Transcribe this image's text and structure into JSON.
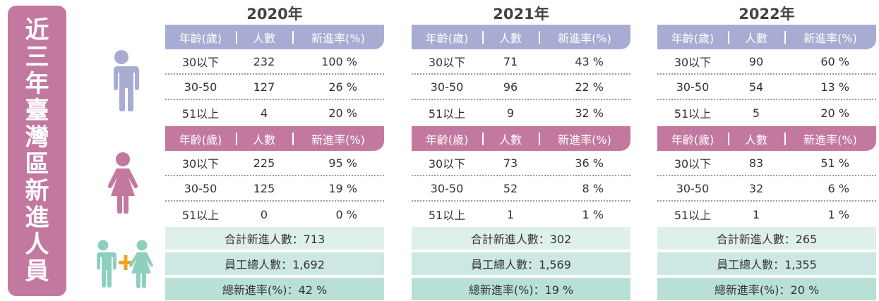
{
  "side_title": "近三年臺灣區新進人員",
  "icons": {
    "male": "male-person-icon",
    "female": "female-person-icon",
    "combined": "male-plus-female-icon"
  },
  "colors": {
    "male_header": "#a8acd3",
    "female_header": "#c3799f",
    "side_panel": "#c3799f",
    "summary_teal": "#b9e0d6",
    "plus_orange": "#f2a31b"
  },
  "headers": {
    "age": "年齡(歲)",
    "count": "人數",
    "rate": "新進率(%)"
  },
  "years": [
    {
      "year": "2020年",
      "male": [
        {
          "age": "30以下",
          "count": "232",
          "rate": "100 %"
        },
        {
          "age": "30-50",
          "count": "127",
          "rate": "26 %"
        },
        {
          "age": "51以上",
          "count": "4",
          "rate": "20 %"
        }
      ],
      "female": [
        {
          "age": "30以下",
          "count": "225",
          "rate": "95 %"
        },
        {
          "age": "30-50",
          "count": "125",
          "rate": "19 %"
        },
        {
          "age": "51以上",
          "count": "0",
          "rate": "0 %"
        }
      ],
      "total_new": "合計新進人數：713",
      "total_employees": "員工總人數：1,692",
      "total_rate": "總新進率(%)：42 %"
    },
    {
      "year": "2021年",
      "male": [
        {
          "age": "30以下",
          "count": "71",
          "rate": "43 %"
        },
        {
          "age": "30-50",
          "count": "96",
          "rate": "22 %"
        },
        {
          "age": "51以上",
          "count": "9",
          "rate": "32 %"
        }
      ],
      "female": [
        {
          "age": "30以下",
          "count": "73",
          "rate": "36 %"
        },
        {
          "age": "30-50",
          "count": "52",
          "rate": "8 %"
        },
        {
          "age": "51以上",
          "count": "1",
          "rate": "1 %"
        }
      ],
      "total_new": "合計新進人數：302",
      "total_employees": "員工總人數：1,569",
      "total_rate": "總新進率(%)：19 %"
    },
    {
      "year": "2022年",
      "male": [
        {
          "age": "30以下",
          "count": "90",
          "rate": "60 %"
        },
        {
          "age": "30-50",
          "count": "54",
          "rate": "13 %"
        },
        {
          "age": "51以上",
          "count": "5",
          "rate": "20 %"
        }
      ],
      "female": [
        {
          "age": "30以下",
          "count": "83",
          "rate": "51 %"
        },
        {
          "age": "30-50",
          "count": "32",
          "rate": "6 %"
        },
        {
          "age": "51以上",
          "count": "1",
          "rate": "1 %"
        }
      ],
      "total_new": "合計新進人數：265",
      "total_employees": "員工總人數：1,355",
      "total_rate": "總新進率(%)：20 %"
    }
  ]
}
